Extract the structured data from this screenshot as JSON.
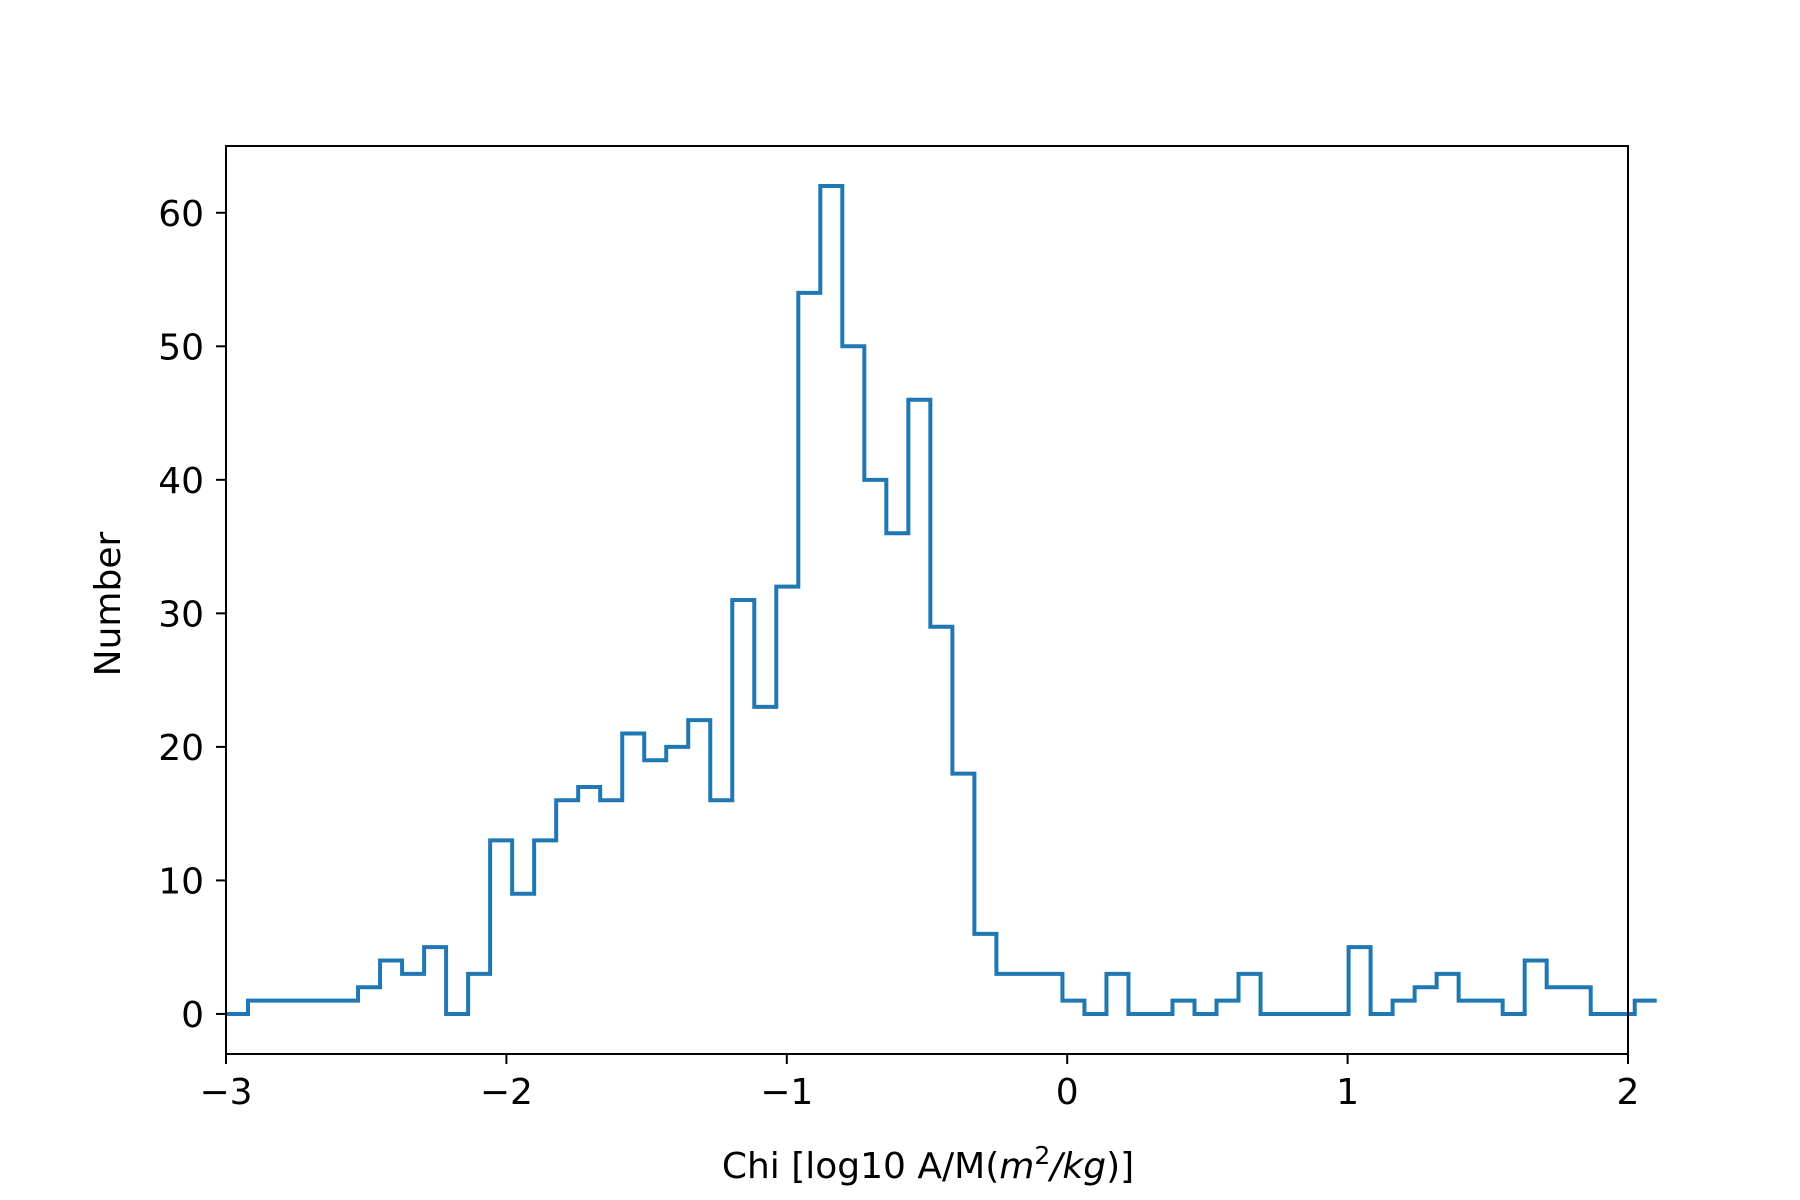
{
  "chart_data": {
    "type": "histogram",
    "title": "",
    "xlabel_prefix": "Chi [log10 A/M(",
    "xlabel_m": "m",
    "xlabel_sup": "2",
    "xlabel_kg": "/kg",
    "xlabel_suffix": ")]",
    "ylabel": "Number",
    "xlim": [
      -3,
      2
    ],
    "ylim": [
      -3,
      65
    ],
    "x_ticks": [
      -3,
      -2,
      -1,
      0,
      1,
      2
    ],
    "x_tick_labels": [
      "−3",
      "−2",
      "−1",
      "0",
      "1",
      "2"
    ],
    "y_ticks": [
      0,
      10,
      20,
      30,
      40,
      50,
      60
    ],
    "y_tick_labels": [
      "0",
      "10",
      "20",
      "30",
      "40",
      "50",
      "60"
    ],
    "grid": false,
    "series": [
      {
        "color": "#1f77b4",
        "bin_start": -3.0,
        "bin_width": 0.0785,
        "counts": [
          0,
          1,
          1,
          1,
          1,
          1,
          2,
          4,
          3,
          5,
          0,
          3,
          13,
          9,
          13,
          16,
          17,
          16,
          21,
          19,
          20,
          22,
          16,
          31,
          23,
          32,
          54,
          62,
          50,
          40,
          36,
          46,
          29,
          18,
          6,
          3,
          3,
          3,
          1,
          0,
          3,
          0,
          0,
          1,
          0,
          1,
          3,
          0,
          0,
          0,
          0,
          5,
          0,
          1,
          2,
          3,
          1,
          1,
          0,
          4,
          2,
          2,
          0,
          0,
          1
        ]
      }
    ]
  }
}
